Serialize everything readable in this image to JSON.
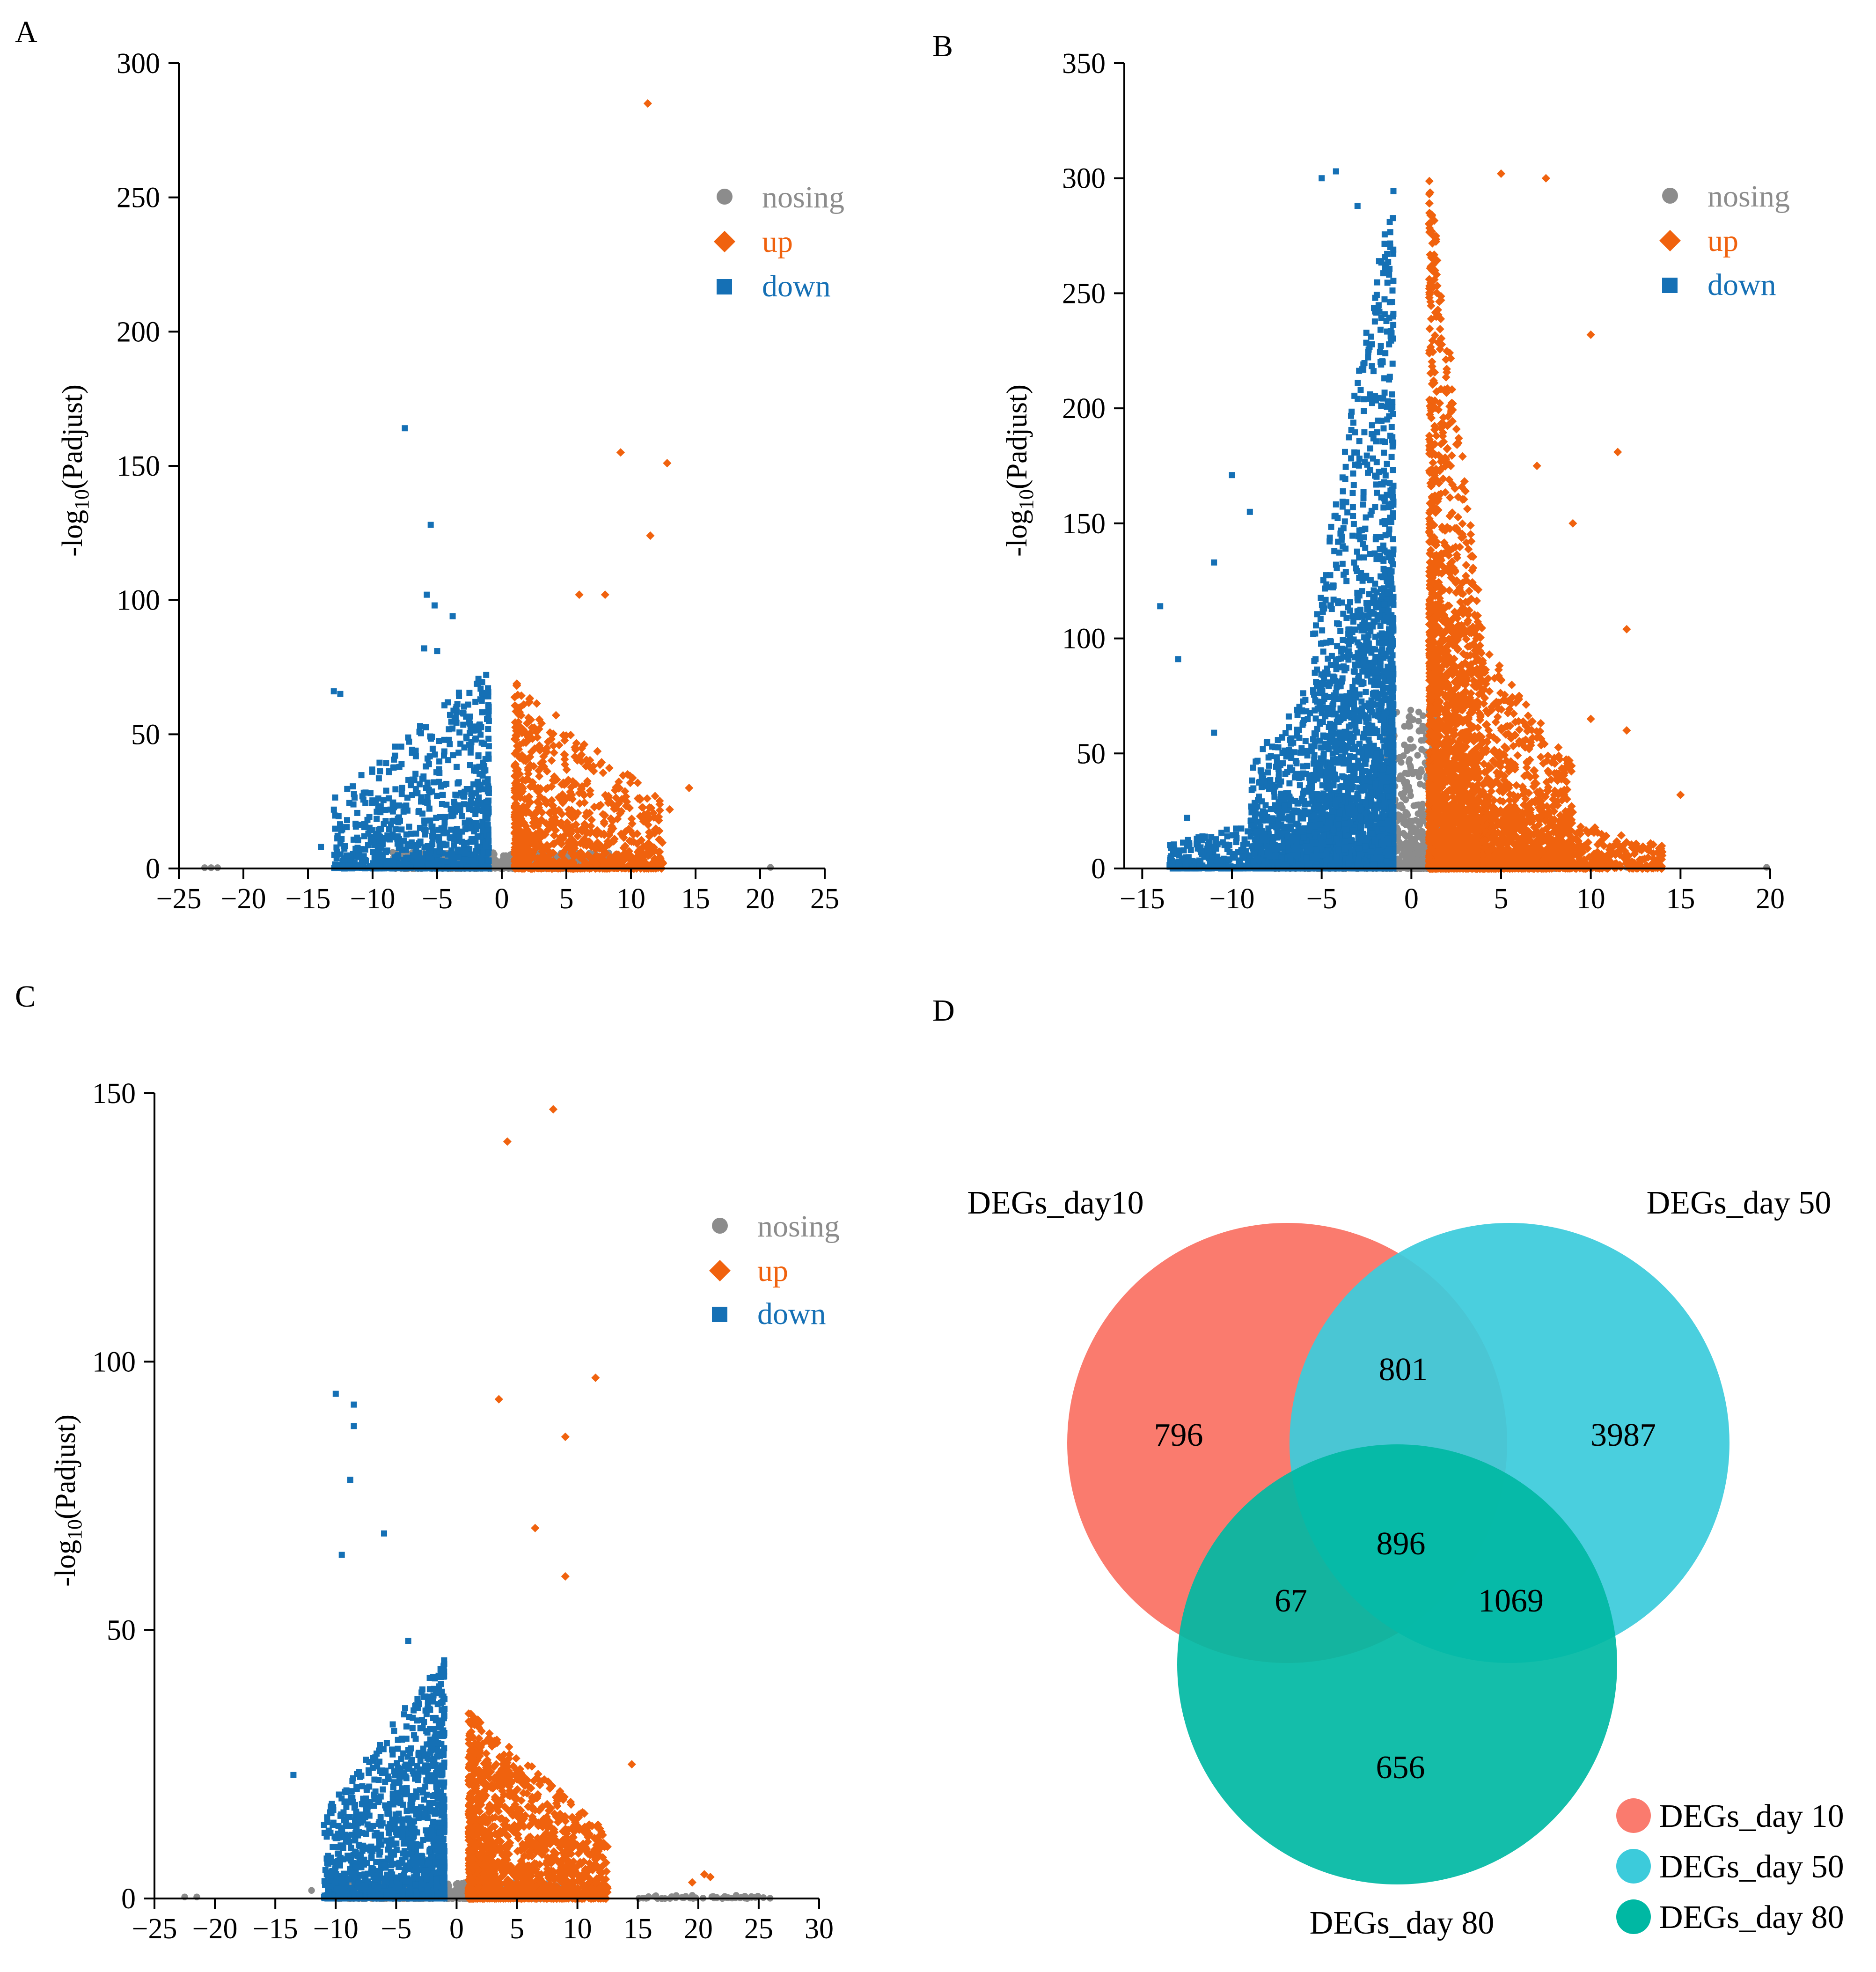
{
  "colors": {
    "nosing": "#8c8c8c",
    "up": "#f0620e",
    "down": "#1570b5",
    "venn_day10": "#fa7b6e",
    "venn_day50": "#3ccbdb",
    "venn_day80": "#00b8a3"
  },
  "chart_data": [
    {
      "panel": "A",
      "type": "scatter",
      "title": "",
      "xlabel": "",
      "ylabel": "-log10(Padjust)",
      "ylabel_parts": {
        "pre": "-log",
        "sub": "10",
        "post": "(Padjust)"
      },
      "xlim": [
        -25,
        25
      ],
      "ylim": [
        0,
        300
      ],
      "xticks": [
        -25,
        -20,
        -15,
        -10,
        -5,
        0,
        5,
        10,
        15,
        20,
        25
      ],
      "yticks": [
        0,
        50,
        100,
        150,
        200,
        250,
        300
      ],
      "legend": {
        "position": "top-right",
        "entries": [
          "nosing",
          "up",
          "down"
        ]
      },
      "series": [
        {
          "name": "nosing",
          "marker": "circle",
          "clouds": [
            {
              "xmin": -8.5,
              "xmax": 8.5,
              "ymax": 6,
              "n": 700
            }
          ],
          "points": [
            [
              -22.5,
              0.3
            ],
            [
              -23.0,
              0.3
            ],
            [
              -22.0,
              0.3
            ],
            [
              10.5,
              1.0
            ],
            [
              20.8,
              0.4
            ]
          ]
        },
        {
          "name": "up",
          "marker": "diamond",
          "clouds": [
            {
              "xmin": 1.0,
              "xmax": 12.5,
              "ymax": 70,
              "n": 1000
            }
          ],
          "points": [
            [
              11.3,
              285
            ],
            [
              9.2,
              155
            ],
            [
              12.8,
              151
            ],
            [
              11.5,
              124
            ],
            [
              8.0,
              102
            ],
            [
              6.0,
              102
            ],
            [
              14.5,
              30
            ],
            [
              13.0,
              22
            ]
          ]
        },
        {
          "name": "down",
          "marker": "square",
          "clouds": [
            {
              "xmin": -13.0,
              "xmax": -1.0,
              "ymax": 75,
              "n": 900
            }
          ],
          "points": [
            [
              -7.5,
              164
            ],
            [
              -5.5,
              128
            ],
            [
              -5.8,
              102
            ],
            [
              -5.2,
              98
            ],
            [
              -3.8,
              94
            ],
            [
              -6.0,
              82
            ],
            [
              -5.0,
              81
            ],
            [
              -13.0,
              66
            ],
            [
              -12.5,
              65
            ],
            [
              -14.0,
              8
            ]
          ]
        }
      ]
    },
    {
      "panel": "B",
      "type": "scatter",
      "title": "",
      "xlabel": "",
      "ylabel": "-log10(Padjust)",
      "ylabel_parts": {
        "pre": "-log",
        "sub": "10",
        "post": "(Padjust)"
      },
      "xlim": [
        -16,
        20
      ],
      "ylim": [
        0,
        350
      ],
      "xticks": [
        -15,
        -10,
        -5,
        0,
        5,
        10,
        15,
        20
      ],
      "yticks": [
        0,
        50,
        100,
        150,
        200,
        250,
        300,
        350
      ],
      "legend": {
        "position": "top-right",
        "entries": [
          "nosing",
          "up",
          "down"
        ]
      },
      "series": [
        {
          "name": "nosing",
          "marker": "circle",
          "clouds": [
            {
              "xmin": -1.5,
              "xmax": 1.5,
              "ymax": 70,
              "n": 500
            },
            {
              "xmin": -8,
              "xmax": 8,
              "ymax": 4,
              "n": 600
            }
          ],
          "points": [
            [
              19.8,
              0.5
            ],
            [
              12.0,
              0.5
            ]
          ]
        },
        {
          "name": "up",
          "marker": "diamond",
          "clouds": [
            {
              "xmin": 1.0,
              "xmax": 4.0,
              "ymax": 300,
              "n": 1400
            },
            {
              "xmin": 1.0,
              "xmax": 9.0,
              "ymax": 130,
              "n": 1800
            },
            {
              "xmin": 4.0,
              "xmax": 14.0,
              "ymax": 30,
              "n": 700
            }
          ],
          "points": [
            [
              5.0,
              302
            ],
            [
              7.5,
              300
            ],
            [
              11.5,
              181
            ],
            [
              10.0,
              232
            ],
            [
              12.0,
              104
            ],
            [
              15.0,
              32
            ],
            [
              12.0,
              60
            ],
            [
              10.0,
              65
            ],
            [
              9.0,
              150
            ],
            [
              7.0,
              175
            ]
          ]
        },
        {
          "name": "down",
          "marker": "square",
          "clouds": [
            {
              "xmin": -5.5,
              "xmax": -1.0,
              "ymax": 300,
              "n": 1400
            },
            {
              "xmin": -9.0,
              "xmax": -1.0,
              "ymax": 130,
              "n": 1800
            },
            {
              "xmin": -13.5,
              "xmax": -4.0,
              "ymax": 30,
              "n": 700
            }
          ],
          "points": [
            [
              -4.2,
              303
            ],
            [
              -5.0,
              300
            ],
            [
              -3.0,
              288
            ],
            [
              -14.0,
              114
            ],
            [
              -13.0,
              91
            ],
            [
              -11.0,
              133
            ],
            [
              -11.0,
              59
            ],
            [
              -12.5,
              22
            ],
            [
              -10.0,
              171
            ],
            [
              -9.0,
              155
            ]
          ]
        }
      ]
    },
    {
      "panel": "C",
      "type": "scatter",
      "title": "",
      "xlabel": "",
      "ylabel": "-log10(Padjust)",
      "ylabel_parts": {
        "pre": "-log",
        "sub": "10",
        "post": "(Padjust)"
      },
      "xlim": [
        -25,
        30
      ],
      "ylim": [
        0,
        150
      ],
      "xticks": [
        -25,
        -20,
        -15,
        -10,
        -5,
        0,
        5,
        10,
        15,
        20,
        25,
        30
      ],
      "yticks": [
        0,
        50,
        100,
        150
      ],
      "legend": {
        "position": "top-right",
        "entries": [
          "nosing",
          "up",
          "down"
        ]
      },
      "series": [
        {
          "name": "nosing",
          "marker": "circle",
          "clouds": [
            {
              "xmin": -10,
              "xmax": 10,
              "ymax": 3,
              "n": 800
            },
            {
              "xmin": 15,
              "xmax": 26,
              "ymax": 0.6,
              "n": 50
            }
          ],
          "points": [
            [
              -21.5,
              0.3
            ],
            [
              -22.5,
              0.3
            ],
            [
              -12.0,
              1.5
            ]
          ]
        },
        {
          "name": "up",
          "marker": "diamond",
          "clouds": [
            {
              "xmin": 1.0,
              "xmax": 12.5,
              "ymax": 35,
              "n": 1600
            }
          ],
          "points": [
            [
              8.0,
              147
            ],
            [
              4.2,
              141
            ],
            [
              11.5,
              97
            ],
            [
              3.5,
              93
            ],
            [
              9.0,
              86
            ],
            [
              6.5,
              69
            ],
            [
              9.0,
              60
            ],
            [
              14.5,
              25
            ],
            [
              20.5,
              4.5
            ],
            [
              21.0,
              4.0
            ],
            [
              19.5,
              3.0
            ]
          ]
        },
        {
          "name": "down",
          "marker": "square",
          "clouds": [
            {
              "xmin": -11.0,
              "xmax": -1.0,
              "ymax": 45,
              "n": 1400
            }
          ],
          "points": [
            [
              -10.0,
              94
            ],
            [
              -8.5,
              92
            ],
            [
              -8.5,
              88
            ],
            [
              -8.8,
              78
            ],
            [
              -6.0,
              68
            ],
            [
              -4.0,
              48
            ],
            [
              -13.5,
              23
            ],
            [
              -9.5,
              64
            ]
          ]
        }
      ]
    }
  ],
  "panels": {
    "a": "A",
    "b": "B",
    "c": "C",
    "d": "D"
  },
  "legend_labels": {
    "nosing": "nosing",
    "up": "up",
    "down": "down"
  },
  "venn": {
    "titles": {
      "day10": "DEGs_day10",
      "day50": "DEGs_day 50",
      "day80": "DEGs_day 80"
    },
    "counts": {
      "only10": "796",
      "only50": "3987",
      "only80": "656",
      "d10_d50": "801",
      "d10_d80": "67",
      "d50_d80": "1069",
      "all": "896"
    },
    "legend": [
      "DEGs_day 10",
      "DEGs_day 50",
      "DEGs_day 80"
    ]
  }
}
